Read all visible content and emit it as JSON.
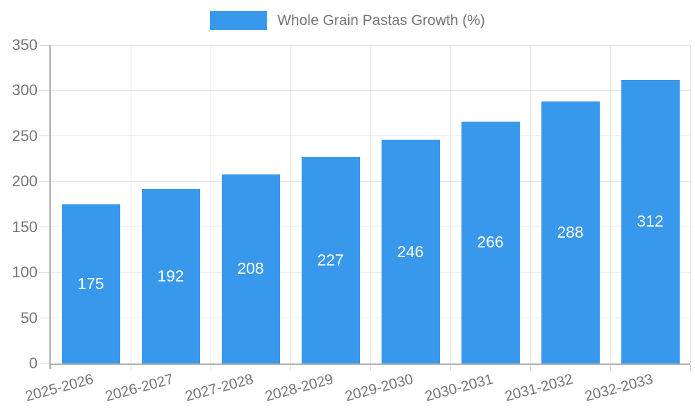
{
  "legend": {
    "label": "Whole Grain Pastas Growth (%)"
  },
  "chart_data": {
    "type": "bar",
    "title": "",
    "xlabel": "",
    "ylabel": "",
    "categories": [
      "2025-2026",
      "2026-2027",
      "2027-2028",
      "2028-2029",
      "2029-2030",
      "2030-2031",
      "2031-2032",
      "2032-2033"
    ],
    "series": [
      {
        "name": "Whole Grain Pastas Growth (%)",
        "values": [
          175,
          192,
          208,
          227,
          246,
          266,
          288,
          312
        ]
      }
    ],
    "value_labels": "inside-center",
    "ylim": [
      0,
      350
    ],
    "ytick_step": 50,
    "yticks": [
      0,
      50,
      100,
      150,
      200,
      250,
      300,
      350
    ],
    "grid": true,
    "legend_position": "top",
    "colors": {
      "bar": "#3899ec",
      "value_label": "#ffffff",
      "axis": "#b0b0b0",
      "gridline": "#e4e4e4",
      "tick": "#d4d4d4",
      "text": "#757575",
      "background": "#ffffff"
    }
  }
}
